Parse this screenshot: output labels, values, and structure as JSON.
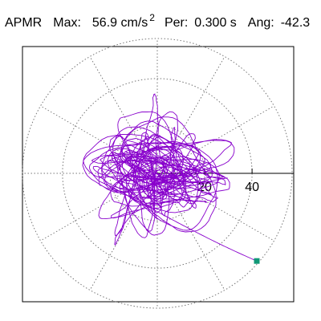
{
  "header": {
    "label": "APMR",
    "max_label": "Max:",
    "max_value": "56.9 cm/s",
    "max_exp": "2",
    "per_label": "Per:",
    "per_value": "0.300 s",
    "ang_label": "Ang:",
    "ang_value": "-42.3"
  },
  "chart_data": {
    "type": "polar-orbit",
    "radial_ticks": [
      20,
      40
    ],
    "radial_max": 56.9,
    "angular_spokes_deg": [
      0,
      30,
      60,
      90,
      120,
      150,
      180,
      210,
      240,
      270,
      300,
      330
    ],
    "grid": true,
    "trace_color": "#8800cc",
    "marker_color": "#119977",
    "end_point": [
      42,
      -37
    ]
  }
}
